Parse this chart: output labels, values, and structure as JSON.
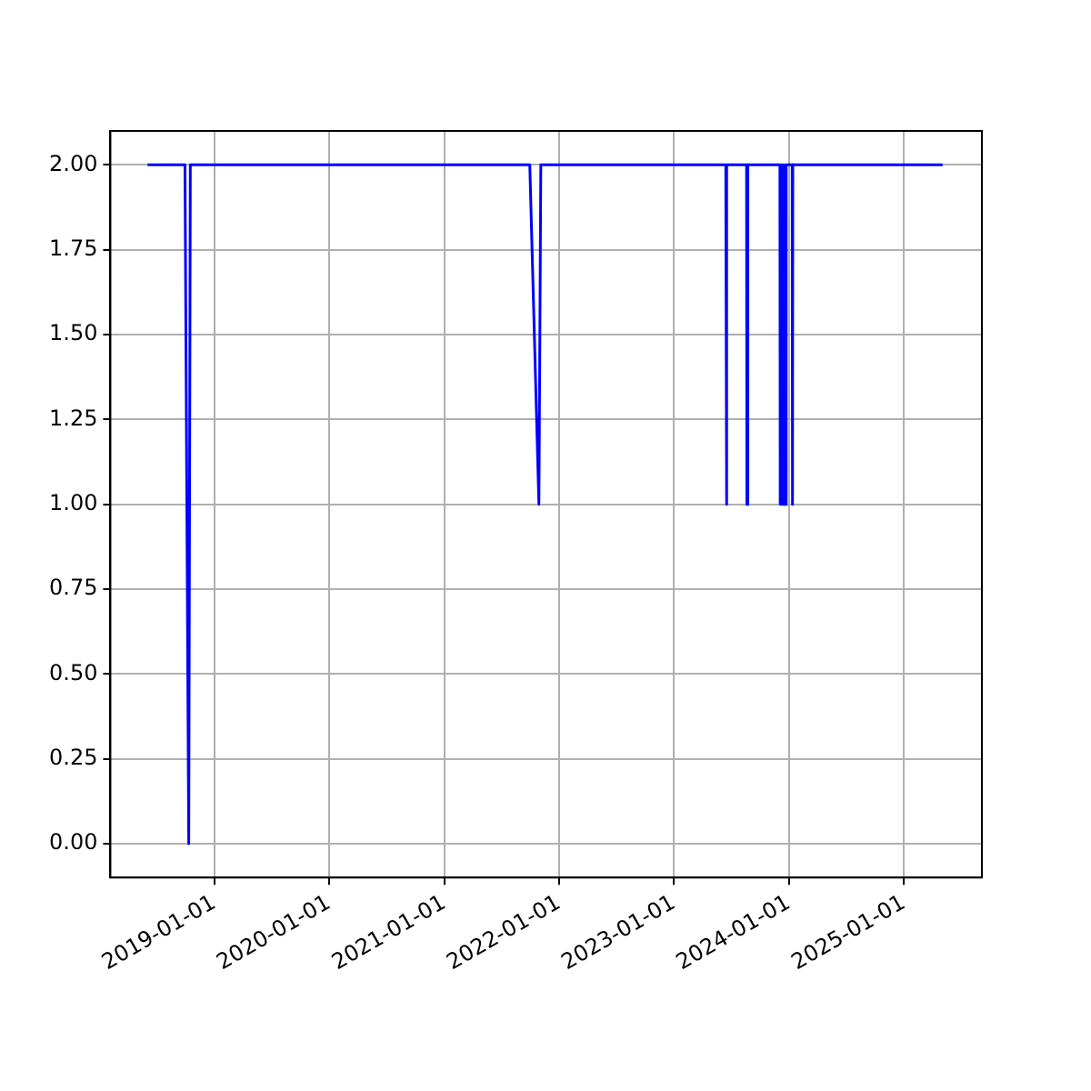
{
  "chart_data": {
    "type": "line",
    "x": [
      "2018-06-03",
      "2018-09-30",
      "2018-10-12",
      "2018-10-17",
      "2021-09-30",
      "2021-10-29",
      "2021-11-04",
      "2023-06-15",
      "2023-06-16",
      "2023-06-18",
      "2023-06-19",
      "2023-08-20",
      "2023-08-21",
      "2023-08-23",
      "2023-08-24",
      "2023-12-04",
      "2023-12-05",
      "2023-12-07",
      "2023-12-09",
      "2023-12-11",
      "2023-12-13",
      "2023-12-15",
      "2023-12-17",
      "2023-12-19",
      "2023-12-21",
      "2023-12-23",
      "2023-12-24",
      "2024-01-12",
      "2024-01-13",
      "2024-01-14",
      "2025-05-04"
    ],
    "series": [
      {
        "color": "#0000ff",
        "values": [
          2,
          2,
          0,
          2,
          2,
          1,
          2,
          2,
          1,
          1,
          2,
          2,
          1,
          1,
          2,
          2,
          1,
          2,
          1,
          2,
          1,
          2,
          1,
          2,
          1,
          1,
          2,
          2,
          1,
          2,
          2
        ]
      }
    ],
    "xlim": [
      "2018-02-05",
      "2025-09-06"
    ],
    "xticks": [
      "2019-01-01",
      "2020-01-01",
      "2021-01-01",
      "2022-01-01",
      "2023-01-01",
      "2024-01-01",
      "2025-01-01"
    ],
    "ylim": [
      -0.1,
      2.1
    ],
    "yticks": [
      {
        "value": 0,
        "label": "0.00"
      },
      {
        "value": 0.25,
        "label": "0.25"
      },
      {
        "value": 0.5,
        "label": "0.50"
      },
      {
        "value": 0.75,
        "label": "0.75"
      },
      {
        "value": 1,
        "label": "1.00"
      },
      {
        "value": 1.25,
        "label": "1.25"
      },
      {
        "value": 1.5,
        "label": "1.50"
      },
      {
        "value": 1.75,
        "label": "1.75"
      },
      {
        "value": 2,
        "label": "2.00"
      }
    ],
    "grid": true,
    "legend": false,
    "marker": "none",
    "line_style": "solid"
  }
}
